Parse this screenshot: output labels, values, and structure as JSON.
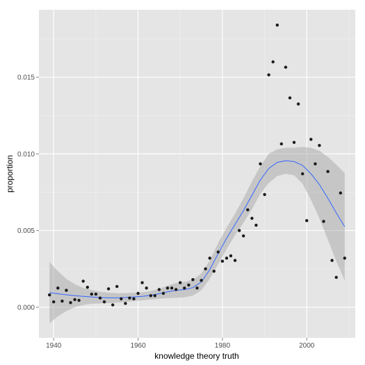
{
  "chart_data": {
    "type": "scatter",
    "title": "",
    "xlabel": "knowledge theory truth",
    "ylabel": "proportion",
    "xlim": [
      1936.5,
      2011.5
    ],
    "ylim": [
      -0.002,
      0.0194
    ],
    "x_ticks": [
      1940,
      1960,
      1980,
      2000
    ],
    "x_tick_labels": [
      "1940",
      "1960",
      "1980",
      "2000"
    ],
    "y_ticks": [
      0.0,
      0.005,
      0.01,
      0.015
    ],
    "y_tick_labels": [
      "0.000",
      "0.005",
      "0.010",
      "0.015"
    ],
    "grid": true,
    "panel_background": "#e5e5e5",
    "grid_color": "#ffffff",
    "point_color": "#1a1a1a",
    "smooth_color": "#3366ff",
    "band_color": "#999999",
    "points": {
      "x": [
        1939,
        1940,
        1941,
        1942,
        1943,
        1944,
        1945,
        1946,
        1947,
        1948,
        1949,
        1950,
        1951,
        1952,
        1953,
        1954,
        1955,
        1956,
        1957,
        1958,
        1959,
        1960,
        1961,
        1962,
        1963,
        1964,
        1965,
        1966,
        1967,
        1968,
        1969,
        1970,
        1971,
        1972,
        1973,
        1974,
        1975,
        1976,
        1977,
        1978,
        1979,
        1980,
        1981,
        1982,
        1983,
        1984,
        1985,
        1986,
        1987,
        1988,
        1989,
        1990,
        1991,
        1992,
        1993,
        1994,
        1995,
        1996,
        1997,
        1998,
        1999,
        2000,
        2001,
        2002,
        2003,
        2004,
        2005,
        2006,
        2007,
        2008,
        2009
      ],
      "y": [
        0.0008,
        0.00035,
        0.00125,
        0.0004,
        0.0011,
        0.0003,
        0.0005,
        0.00045,
        0.0017,
        0.0013,
        0.00085,
        0.00085,
        0.0006,
        0.00035,
        0.0012,
        0.00015,
        0.00135,
        0.00055,
        0.00025,
        0.0006,
        0.00055,
        0.0009,
        0.0016,
        0.00125,
        0.00075,
        0.00075,
        0.00115,
        0.0009,
        0.00125,
        0.00125,
        0.00115,
        0.0016,
        0.00125,
        0.00145,
        0.0018,
        0.00125,
        0.00175,
        0.0025,
        0.0032,
        0.00235,
        0.0036,
        0.003,
        0.0032,
        0.00335,
        0.00305,
        0.005,
        0.00465,
        0.00635,
        0.0058,
        0.00535,
        0.00935,
        0.00735,
        0.01515,
        0.016,
        0.0184,
        0.01065,
        0.01565,
        0.01365,
        0.01075,
        0.01325,
        0.0087,
        0.00565,
        0.01095,
        0.00935,
        0.01055,
        0.0056,
        0.00885,
        0.00305,
        0.00195,
        0.00745,
        0.0032
      ]
    },
    "smooth": {
      "x": [
        1939,
        1941,
        1943,
        1945,
        1947,
        1949,
        1951,
        1953,
        1955,
        1957,
        1959,
        1961,
        1963,
        1965,
        1967,
        1969,
        1971,
        1973,
        1975,
        1977,
        1979,
        1981,
        1983,
        1985,
        1987,
        1989,
        1991,
        1993,
        1995,
        1997,
        1999,
        2001,
        2003,
        2005,
        2007,
        2009
      ],
      "y": [
        0.00095,
        0.00088,
        0.00081,
        0.00075,
        0.00071,
        0.00067,
        0.00063,
        0.00061,
        0.00061,
        0.00063,
        0.00067,
        0.00071,
        0.00078,
        0.00088,
        0.001,
        0.0011,
        0.00115,
        0.00128,
        0.00165,
        0.00245,
        0.0035,
        0.0045,
        0.0054,
        0.0063,
        0.0073,
        0.0083,
        0.00905,
        0.00945,
        0.00955,
        0.0095,
        0.00925,
        0.0087,
        0.008,
        0.0071,
        0.00615,
        0.00525
      ],
      "lower": [
        -0.00105,
        -0.0006,
        -0.00025,
        0.0,
        0.00015,
        0.00022,
        0.00025,
        0.00027,
        0.0003,
        0.00035,
        0.0004,
        0.00045,
        0.0005,
        0.00055,
        0.0006,
        0.00062,
        0.00065,
        0.00075,
        0.0011,
        0.00185,
        0.0028,
        0.0038,
        0.0047,
        0.0055,
        0.0064,
        0.0074,
        0.0081,
        0.00855,
        0.0087,
        0.0086,
        0.00805,
        0.007,
        0.0058,
        0.0044,
        0.003,
        0.00175
      ],
      "upper": [
        0.00295,
        0.00235,
        0.00185,
        0.0015,
        0.00125,
        0.00112,
        0.001,
        0.00095,
        0.00092,
        0.00092,
        0.00095,
        0.00097,
        0.00105,
        0.0012,
        0.0014,
        0.00158,
        0.00165,
        0.0018,
        0.0022,
        0.00305,
        0.0042,
        0.0052,
        0.0061,
        0.0071,
        0.0082,
        0.0092,
        0.01,
        0.0103,
        0.0104,
        0.0104,
        0.01045,
        0.0104,
        0.0102,
        0.0098,
        0.0093,
        0.00875
      ]
    }
  }
}
